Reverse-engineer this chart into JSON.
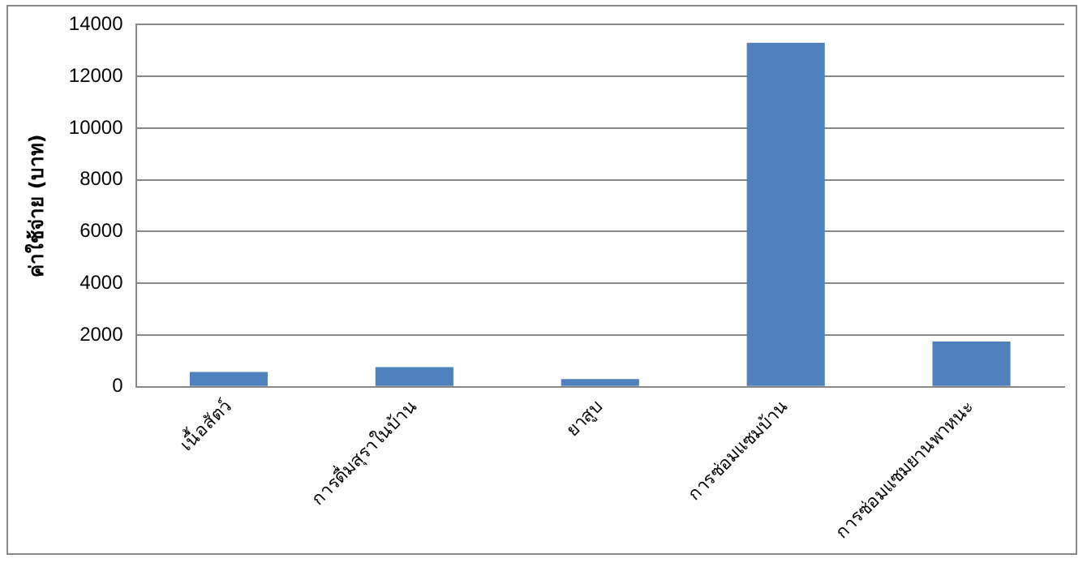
{
  "chart_data": {
    "type": "bar",
    "ylabel": "ค่าใช้จ่าย (บาท)",
    "categories": [
      "เนื้อสัตว์",
      "การดื่มสุราในบ้าน",
      "ยาสูบ",
      "การซ่อมแซมบ้าน",
      "การซ่อมแซมยานพาหนะ"
    ],
    "values": [
      570,
      760,
      300,
      13300,
      1750
    ],
    "color": "#4f81bd",
    "ylim": [
      0,
      14000
    ],
    "yticks": [
      0,
      2000,
      4000,
      6000,
      8000,
      10000,
      12000,
      14000
    ],
    "grid": "y",
    "legend": false
  }
}
